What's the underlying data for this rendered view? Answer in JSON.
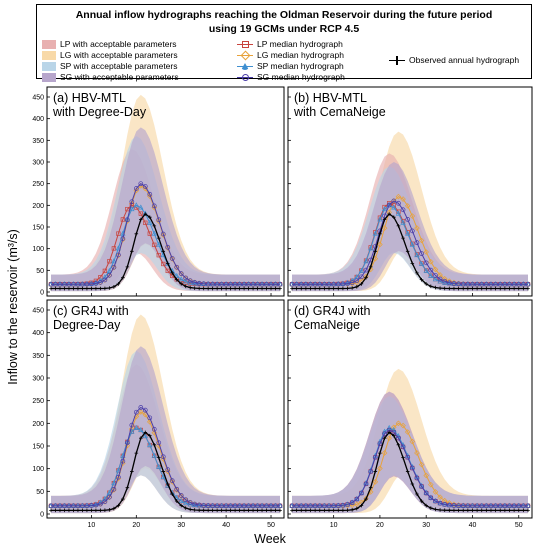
{
  "title_line1": "Annual inflow hydrographs reaching the Oldman Reservoir during the future period",
  "title_line2": "using 19 GCMs under RCP 4.5",
  "legend": {
    "bands": [
      {
        "label": "LP with acceptable parameters",
        "color": "#e8b0b0"
      },
      {
        "label": "LG with acceptable parameters",
        "color": "#f8d9a8"
      },
      {
        "label": "SP with acceptable parameters",
        "color": "#b9d5e8"
      },
      {
        "label": "SG with acceptable parameters",
        "color": "#b7a6cc"
      }
    ],
    "medians": [
      {
        "label": "LP median hydrograph",
        "color": "#c8443e",
        "marker": "square"
      },
      {
        "label": "LG median hydrograph",
        "color": "#e8a23a",
        "marker": "diamond"
      },
      {
        "label": "SP median hydrograph",
        "color": "#3f8fd0",
        "marker": "triangle"
      },
      {
        "label": "SG median hydrograph",
        "color": "#4a3da8",
        "marker": "circle"
      }
    ],
    "observed": {
      "label": "Observed annual hydrograph",
      "color": "#000000"
    }
  },
  "ylabel": "Inflow to the reservoir (m³/s)",
  "xlabel": "Week",
  "chart_data": [
    {
      "type": "line",
      "panel": "(a)",
      "title": "(a)  HBV-MTL\nwith Degree-Day",
      "xlim": [
        1,
        52
      ],
      "ylim": [
        0,
        450
      ],
      "xticks": [
        10,
        20,
        30,
        40,
        50
      ],
      "yticks": [
        0,
        50,
        100,
        150,
        200,
        250,
        300,
        350,
        400,
        450
      ],
      "peaks": {
        "LP": 200,
        "LG": 245,
        "SP": 200,
        "SG": 250,
        "OBS": 180
      },
      "peak_weeks": {
        "LP": 19,
        "LG": 21,
        "SP": 20,
        "SG": 21,
        "OBS": 22
      },
      "band_tops": {
        "LP": 330,
        "LG": 455,
        "SP": 360,
        "SG": 380
      }
    },
    {
      "type": "line",
      "panel": "(b)",
      "title": "(b)  HBV-MTL\nwith CemaNeige",
      "xlim": [
        1,
        52
      ],
      "ylim": [
        0,
        450
      ],
      "xticks": [
        10,
        20,
        30,
        40,
        50
      ],
      "yticks": [
        0,
        50,
        100,
        150,
        200,
        250,
        300,
        350,
        400,
        450
      ],
      "peaks": {
        "LP": 205,
        "LG": 220,
        "SP": 200,
        "SG": 210,
        "OBS": 180
      },
      "peak_weeks": {
        "LP": 22,
        "LG": 24,
        "SP": 22,
        "SG": 23,
        "OBS": 22
      },
      "band_tops": {
        "LP": 320,
        "LG": 370,
        "SP": 290,
        "SG": 300
      }
    },
    {
      "type": "line",
      "panel": "(c)",
      "title": "(c)  GR4J with\nDegree-Day",
      "xlim": [
        1,
        52
      ],
      "ylim": [
        0,
        450
      ],
      "xticks": [
        10,
        20,
        30,
        40,
        50
      ],
      "yticks": [
        0,
        50,
        100,
        150,
        200,
        250,
        300,
        350,
        400,
        450
      ],
      "peaks": {
        "LP": 190,
        "LG": 225,
        "SP": 190,
        "SG": 235,
        "OBS": 180
      },
      "peak_weeks": {
        "LP": 20,
        "LG": 21,
        "SP": 20,
        "SG": 21,
        "OBS": 22
      },
      "band_tops": {
        "LP": 330,
        "LG": 440,
        "SP": 360,
        "SG": 370
      }
    },
    {
      "type": "line",
      "panel": "(d)",
      "title": "(d)  GR4J with\nCemaNeige",
      "xlim": [
        1,
        52
      ],
      "ylim": [
        0,
        450
      ],
      "xticks": [
        10,
        20,
        30,
        40,
        50
      ],
      "yticks": [
        0,
        50,
        100,
        150,
        200,
        250,
        300,
        350,
        400,
        450
      ],
      "peaks": {
        "LP": 185,
        "LG": 200,
        "SP": 190,
        "SG": 185,
        "OBS": 180
      },
      "peak_weeks": {
        "LP": 22,
        "LG": 24,
        "SP": 22,
        "SG": 22,
        "OBS": 22
      },
      "band_tops": {
        "LP": 270,
        "LG": 320,
        "SP": 260,
        "SG": 270
      }
    }
  ]
}
